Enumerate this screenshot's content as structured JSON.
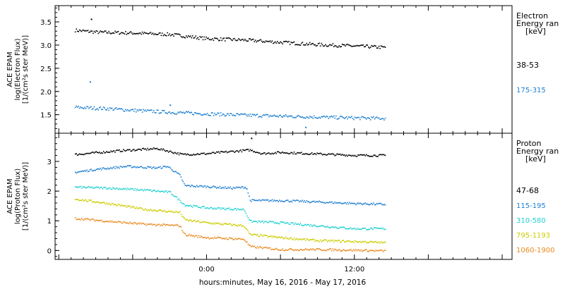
{
  "chart_data": [
    {
      "type": "scatter",
      "panel": "electron",
      "ylabel": [
        "ACE EPAM",
        "log(Electron Flux)",
        "[1/(cm²s ster MeV)]"
      ],
      "ylim": [
        1.1,
        3.85
      ],
      "yticks": [
        1.5,
        2.0,
        2.5,
        3.0,
        3.5
      ],
      "ytick_labels": [
        "1.5",
        "2.0",
        "2.5",
        "3.0",
        "3.5"
      ],
      "legend_title": [
        "Electron",
        "Energy ran",
        "[keV]"
      ],
      "legend_placement": "right",
      "grid": false,
      "series": [
        {
          "name": "38-53",
          "color": "#000000",
          "x": [
            -10.7,
            -9,
            -6,
            -3,
            0,
            3,
            6,
            9,
            12,
            14.5
          ],
          "y": [
            3.33,
            3.29,
            3.27,
            3.24,
            3.15,
            3.12,
            3.07,
            3.02,
            2.99,
            2.96
          ],
          "outliers": [
            [
              -9.4,
              3.57
            ]
          ]
        },
        {
          "name": "175-315",
          "color": "#1f7fd0",
          "x": [
            -10.7,
            -8,
            -5,
            -2,
            0,
            3,
            6,
            9,
            12,
            14.5
          ],
          "y": [
            1.67,
            1.64,
            1.59,
            1.55,
            1.53,
            1.5,
            1.48,
            1.46,
            1.44,
            1.43
          ],
          "outliers": [
            [
              -9.5,
              2.22
            ],
            [
              -3.0,
              1.72
            ],
            [
              8.0,
              1.24
            ]
          ]
        }
      ]
    },
    {
      "type": "scatter",
      "panel": "proton",
      "ylabel": [
        "ACE EPAM",
        "log(Proton Flux)",
        "[1/(cm²s ster MeV)]"
      ],
      "ylim": [
        -0.3,
        3.95
      ],
      "yticks": [
        0,
        1,
        2,
        3
      ],
      "ytick_labels": [
        "0",
        "1",
        "2",
        "3"
      ],
      "legend_title": [
        "Proton",
        "Energy ran",
        "[keV]"
      ],
      "legend_placement": "right",
      "grid": false,
      "series": [
        {
          "name": "47-68",
          "color": "#000000",
          "x": [
            -10.7,
            -7,
            -4,
            -2,
            0,
            2,
            3.5,
            4.5,
            6,
            9,
            12,
            14.5
          ],
          "y": [
            3.25,
            3.38,
            3.45,
            3.25,
            3.28,
            3.35,
            3.4,
            3.28,
            3.32,
            3.27,
            3.22,
            3.22
          ],
          "outliers": [
            [
              3.6,
              3.8
            ]
          ]
        },
        {
          "name": "115-195",
          "color": "#1f7fd0",
          "x": [
            -10.7,
            -9,
            -6.5,
            -4,
            -3.2,
            -2.2,
            -1.8,
            0,
            2,
            3.2,
            3.5,
            6,
            9,
            12,
            14.5
          ],
          "y": [
            2.65,
            2.75,
            2.85,
            2.8,
            2.85,
            2.55,
            2.2,
            2.17,
            2.12,
            2.15,
            1.7,
            1.7,
            1.65,
            1.6,
            1.57
          ],
          "outliers": []
        },
        {
          "name": "310-580",
          "color": "#22d0d0",
          "x": [
            -10.7,
            -8,
            -5,
            -3,
            -2.2,
            -1.8,
            0,
            3,
            3.5,
            6,
            9,
            12,
            14.5
          ],
          "y": [
            2.15,
            2.12,
            2.05,
            1.98,
            1.7,
            1.55,
            1.45,
            1.4,
            1.0,
            0.95,
            0.85,
            0.75,
            0.75
          ],
          "outliers": []
        },
        {
          "name": "795-1193",
          "color": "#cccc00",
          "x": [
            -10.7,
            -8,
            -5,
            -2.2,
            -1.8,
            0,
            3,
            3.5,
            6,
            9,
            12,
            14.5
          ],
          "y": [
            1.75,
            1.6,
            1.4,
            1.3,
            1.05,
            0.95,
            0.85,
            0.55,
            0.45,
            0.35,
            0.32,
            0.28
          ],
          "outliers": []
        },
        {
          "name": "1060-1900",
          "color": "#e88a20",
          "x": [
            -10.7,
            -8,
            -5,
            -2.2,
            -1.8,
            0,
            3,
            3.5,
            6,
            9,
            12,
            14.5
          ],
          "y": [
            1.1,
            1.0,
            0.9,
            0.85,
            0.55,
            0.45,
            0.4,
            0.15,
            0.05,
            0.05,
            0.03,
            0.0
          ],
          "outliers": []
        }
      ]
    }
  ],
  "xaxis": {
    "xlim": [
      -12.3,
      24.8
    ],
    "major_ticks": [
      0,
      12
    ],
    "tick_labels": [
      "0:00",
      "12:00"
    ],
    "xlabel": "hours:minutes, May 16, 2016 - May 17, 2016"
  }
}
